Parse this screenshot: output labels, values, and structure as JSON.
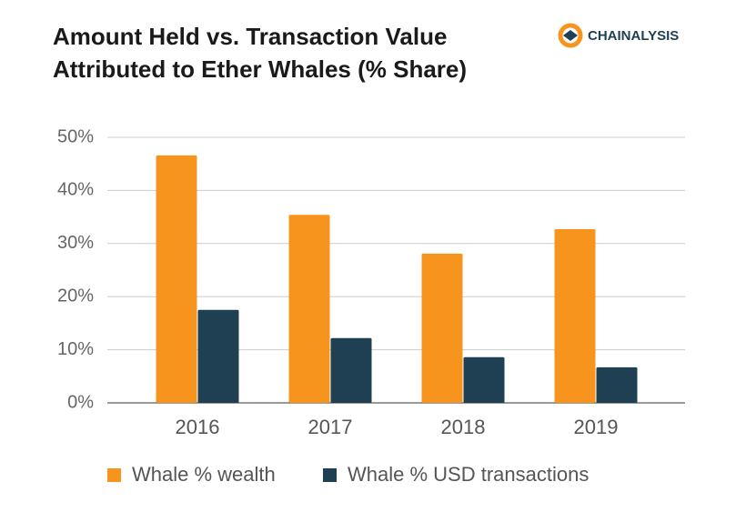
{
  "chart_data": {
    "type": "bar",
    "title": "Amount Held vs. Transaction Value Attributed to Ether Whales (% Share)",
    "brand": "CHAINALYSIS",
    "categories": [
      "2016",
      "2017",
      "2018",
      "2019"
    ],
    "series": [
      {
        "name": "Whale % wealth",
        "color": "#f7941d",
        "values": [
          46.6,
          35.4,
          28.1,
          32.7
        ]
      },
      {
        "name": "Whale % USD transactions",
        "color": "#1f3f52",
        "values": [
          17.5,
          12.2,
          8.6,
          6.7
        ]
      }
    ],
    "ylim": [
      0,
      50
    ],
    "yticks": [
      {
        "value": 0,
        "label": "0%"
      },
      {
        "value": 10,
        "label": "10%"
      },
      {
        "value": 20,
        "label": "20%"
      },
      {
        "value": 30,
        "label": "30%"
      },
      {
        "value": 40,
        "label": "40%"
      },
      {
        "value": 50,
        "label": "50%"
      }
    ],
    "grid": true,
    "legend": "bottom"
  }
}
